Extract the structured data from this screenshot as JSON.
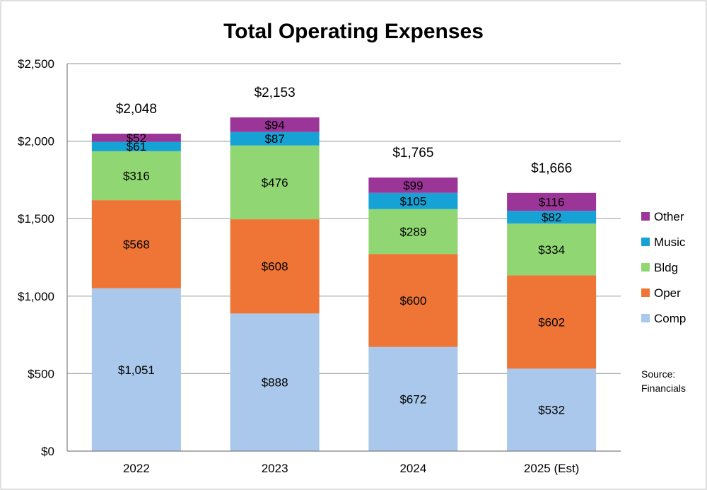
{
  "chart_data": {
    "type": "bar",
    "stacked": true,
    "title": "Total Operating Expenses",
    "categories": [
      "2022",
      "2023",
      "2024",
      "2025 (Est)"
    ],
    "series": [
      {
        "name": "Comp",
        "color": "#a9c8eb",
        "values": [
          1051,
          888,
          672,
          532
        ],
        "labels": [
          "$1,051",
          "$888",
          "$672",
          "$532"
        ]
      },
      {
        "name": "Oper",
        "color": "#ee7535",
        "values": [
          568,
          608,
          600,
          602
        ],
        "labels": [
          "$568",
          "$608",
          "$600",
          "$602"
        ]
      },
      {
        "name": "Bldg",
        "color": "#90d774",
        "values": [
          316,
          476,
          289,
          334
        ],
        "labels": [
          "$316",
          "$476",
          "$289",
          "$334"
        ]
      },
      {
        "name": "Music",
        "color": "#16a2d5",
        "values": [
          61,
          87,
          105,
          82
        ],
        "labels": [
          "$61",
          "$87",
          "$105",
          "$82"
        ]
      },
      {
        "name": "Other",
        "color": "#9c3598",
        "values": [
          52,
          94,
          99,
          116
        ],
        "labels": [
          "$52",
          "$94",
          "$99",
          "$116"
        ]
      }
    ],
    "totals": [
      2048,
      2153,
      1765,
      1666
    ],
    "total_labels": [
      "$2,048",
      "$2,153",
      "$1,765",
      "$1,666"
    ],
    "ylim": [
      0,
      2500
    ],
    "yticks": [
      0,
      500,
      1000,
      1500,
      2000,
      2500
    ],
    "ytick_labels": [
      "$0",
      "$500",
      "$1,000",
      "$1,500",
      "$2,000",
      "$2,500"
    ],
    "grid": true,
    "legend_position": "right",
    "legend_order": [
      "Other",
      "Music",
      "Bldg",
      "Oper",
      "Comp"
    ],
    "annotation": [
      "Source:",
      "Financials"
    ]
  }
}
